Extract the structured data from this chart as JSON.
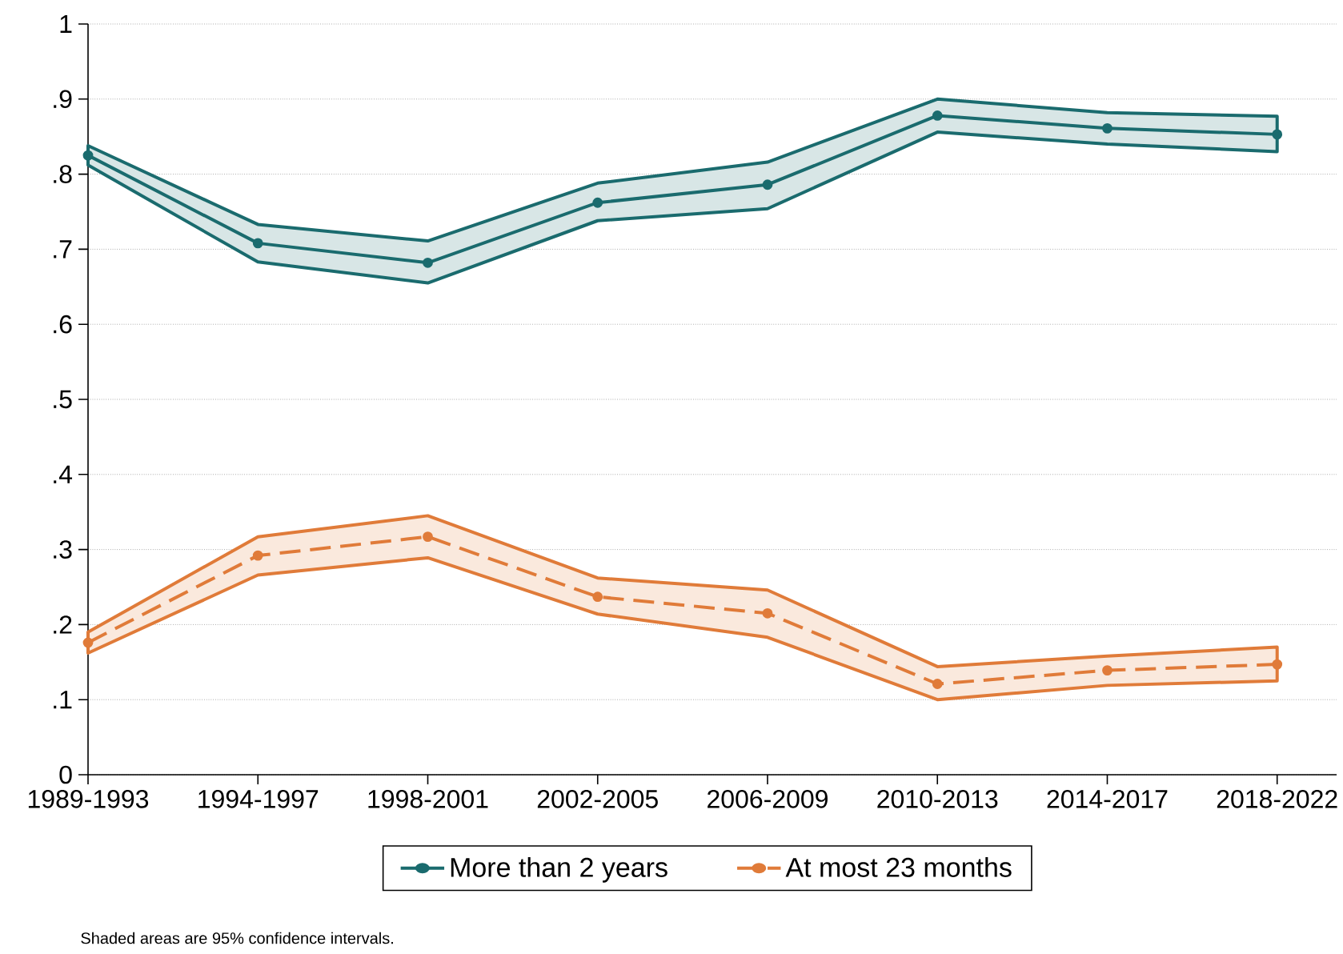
{
  "chart_data": {
    "type": "line",
    "categories": [
      "1989-1993",
      "1994-1997",
      "1998-2001",
      "2002-2005",
      "2006-2009",
      "2010-2013",
      "2014-2017",
      "2018-2022"
    ],
    "series": [
      {
        "name": "More than 2 years",
        "color": "#1a6b6e",
        "line_style": "solid",
        "values": [
          0.825,
          0.708,
          0.682,
          0.762,
          0.786,
          0.878,
          0.861,
          0.853
        ],
        "lower": [
          0.812,
          0.683,
          0.655,
          0.738,
          0.754,
          0.856,
          0.84,
          0.83
        ],
        "upper": [
          0.838,
          0.733,
          0.711,
          0.788,
          0.816,
          0.9,
          0.882,
          0.877
        ]
      },
      {
        "name": "At most 23 months",
        "color": "#e07b39",
        "line_style": "dashed",
        "values": [
          0.176,
          0.292,
          0.317,
          0.237,
          0.215,
          0.121,
          0.139,
          0.147
        ],
        "lower": [
          0.162,
          0.266,
          0.289,
          0.214,
          0.183,
          0.1,
          0.119,
          0.125
        ],
        "upper": [
          0.19,
          0.317,
          0.345,
          0.262,
          0.246,
          0.144,
          0.158,
          0.17
        ]
      }
    ],
    "ylim": [
      0,
      1
    ],
    "yticks": [
      0,
      {
        "value": 0.1,
        "label": ".1"
      },
      {
        "value": 0.2,
        "label": ".2"
      },
      {
        "value": 0.3,
        "label": ".3"
      },
      {
        "value": 0.4,
        "label": ".4"
      },
      {
        "value": 0.5,
        "label": ".5"
      },
      {
        "value": 0.6,
        "label": ".6"
      },
      {
        "value": 0.7,
        "label": ".7"
      },
      {
        "value": 0.8,
        "label": ".8"
      },
      {
        "value": 0.9,
        "label": ".9"
      },
      1
    ],
    "grid": "y",
    "legend": "bottom",
    "marker": "circle",
    "annotations": [
      "Shaded areas are 95% confidence intervals."
    ]
  }
}
